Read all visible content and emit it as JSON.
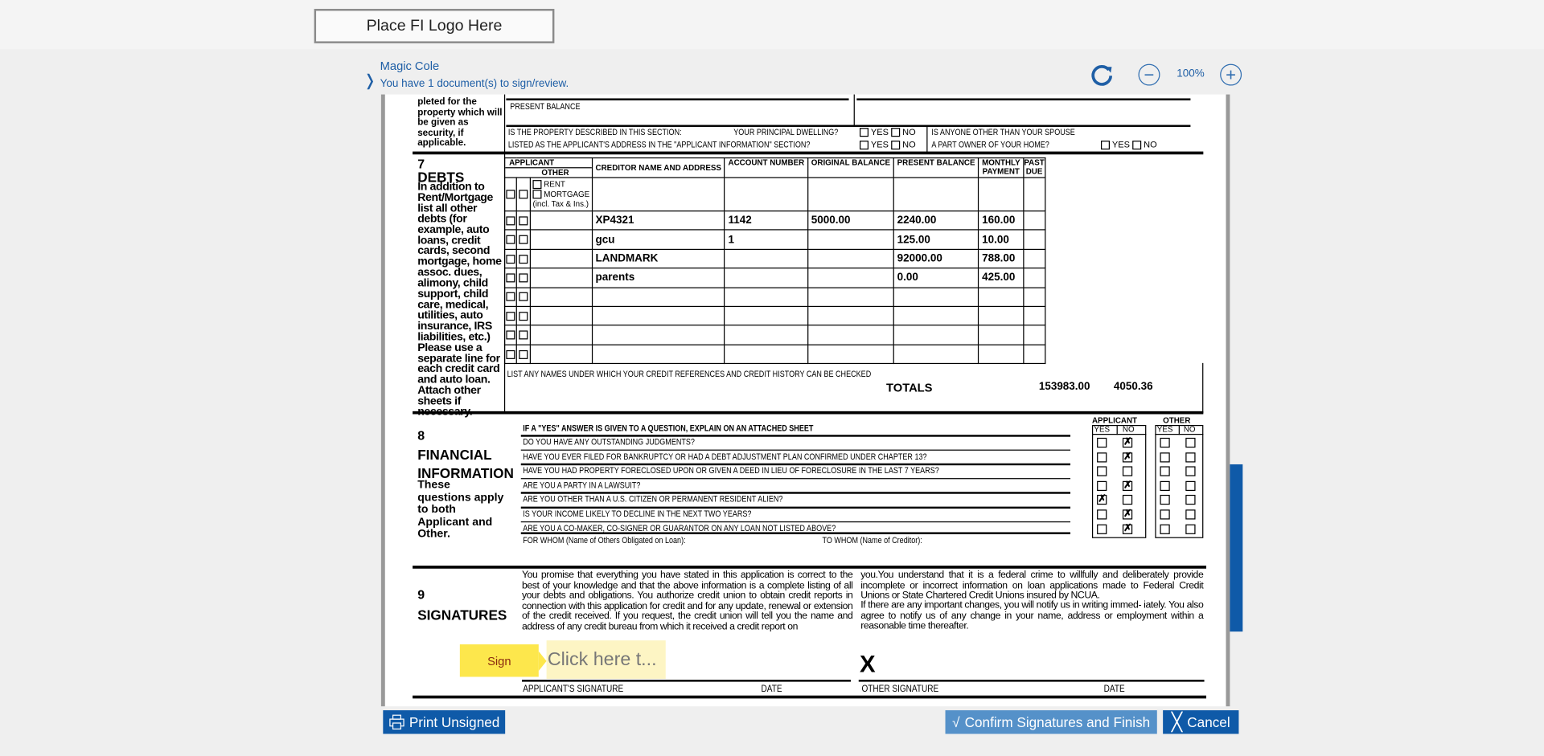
{
  "header": {
    "logo_text": "Place FI Logo Here"
  },
  "signer": {
    "name": "Magic Cole",
    "documents_message": "You have 1 document(s) to sign/review."
  },
  "toolbar": {
    "zoom_level": "100%",
    "icons": [
      "refresh-icon",
      "zoom-out-icon",
      "zoom-in-icon"
    ]
  },
  "colors": {
    "accent": "#0f5aa8",
    "sign_tag": "#fde74c",
    "sign_field": "#fdf5c4",
    "confirm_button": "#5591c9"
  },
  "form": {
    "prev_section": {
      "left_text": "pleted for the property which will be given as security, if applicable.",
      "present_balance_label": "PRESENT BALANCE",
      "q1": "IS THE PROPERTY DESCRIBED IN THIS SECTION:",
      "q1b": "YOUR PRINCIPAL DWELLING?",
      "q2": "LISTED AS THE APPLICANT'S ADDRESS IN THE \"APPLICANT INFORMATION\" SECTION?",
      "q3": "IS ANYONE OTHER THAN YOUR SPOUSE",
      "q4": "A PART OWNER OF YOUR HOME?",
      "yes": "YES",
      "no": "NO"
    },
    "debts": {
      "number": "7",
      "title": "DEBTS",
      "description": "In addition to Rent/Mortgage list all other debts (for example, auto loans, credit cards, second mortgage, home assoc. dues, alimony, child support, child care, medical, utilities, auto insurance, IRS liabilities, etc.) Please use a separate line for each credit card and auto loan. Attach other sheets if necessary.",
      "columns": {
        "applicant": "APPLICANT",
        "other": "OTHER",
        "creditor": "CREDITOR NAME AND ADDRESS",
        "account": "ACCOUNT  NUMBER",
        "original": "ORIGINAL BALANCE",
        "present": "PRESENT BALANCE",
        "monthly": "MONTHLY PAYMENT",
        "past_due": "PAST DUE"
      },
      "rent_label": "RENT",
      "mortgage_label": "MORTGAGE",
      "mortgage_note": "(incl. Tax & Ins.)",
      "rows": [
        {
          "creditor": "XP4321",
          "account": "1142",
          "original": "5000.00",
          "present": "2240.00",
          "monthly": "160.00",
          "past_due": ""
        },
        {
          "creditor": "gcu",
          "account": "1",
          "original": "",
          "present": "125.00",
          "monthly": "10.00",
          "past_due": ""
        },
        {
          "creditor": "LANDMARK",
          "account": "",
          "original": "",
          "present": "92000.00",
          "monthly": "788.00",
          "past_due": ""
        },
        {
          "creditor": "parents",
          "account": "",
          "original": "",
          "present": "0.00",
          "monthly": "425.00",
          "past_due": ""
        },
        {
          "creditor": "",
          "account": "",
          "original": "",
          "present": "",
          "monthly": "",
          "past_due": ""
        },
        {
          "creditor": "",
          "account": "",
          "original": "",
          "present": "",
          "monthly": "",
          "past_due": ""
        },
        {
          "creditor": "",
          "account": "",
          "original": "",
          "present": "",
          "monthly": "",
          "past_due": ""
        },
        {
          "creditor": "",
          "account": "",
          "original": "",
          "present": "",
          "monthly": "",
          "past_due": ""
        }
      ],
      "names_label": "LIST ANY NAMES UNDER WHICH YOUR CREDIT REFERENCES AND CREDIT HISTORY CAN BE CHECKED",
      "totals_label": "TOTALS",
      "total_present": "153983.00",
      "total_monthly": "4050.36"
    },
    "financial": {
      "number": "8",
      "title1": "FINANCIAL",
      "title2": "INFORMATION",
      "description": "These questions apply to both Applicant and Other.",
      "instruction": "IF A \"YES\" ANSWER IS GIVEN TO A QUESTION, EXPLAIN ON AN ATTACHED SHEET",
      "applicant_label": "APPLICANT",
      "other_label": "OTHER",
      "yes": "YES",
      "no": "NO",
      "questions": [
        {
          "text": "DO YOU HAVE ANY OUTSTANDING JUDGMENTS?",
          "applicant": "no"
        },
        {
          "text": "HAVE YOU EVER FILED FOR BANKRUPTCY OR HAD A DEBT ADJUSTMENT PLAN CONFIRMED UNDER CHAPTER 13?",
          "applicant": "no"
        },
        {
          "text": "HAVE YOU HAD PROPERTY FORECLOSED UPON OR GIVEN A DEED IN LIEU OF FORECLOSURE IN THE LAST 7 YEARS?",
          "applicant": ""
        },
        {
          "text": "ARE YOU A PARTY IN A LAWSUIT?",
          "applicant": "no"
        },
        {
          "text": "ARE YOU OTHER THAN A U.S. CITIZEN OR PERMANENT RESIDENT ALIEN?",
          "applicant": "yes"
        },
        {
          "text": "IS YOUR INCOME LIKELY TO DECLINE IN THE NEXT TWO YEARS?",
          "applicant": "no"
        },
        {
          "text": "ARE YOU A CO-MAKER, CO-SIGNER OR GUARANTOR ON ANY LOAN NOT LISTED ABOVE?",
          "applicant": "no"
        }
      ],
      "for_whom": "FOR WHOM (Name of Others Obligated on Loan):",
      "to_whom": "TO WHOM (Name of Creditor):"
    },
    "signatures": {
      "number": "9",
      "title": "SIGNATURES",
      "text_left": "You promise that everything you have stated in this application is      correct to the best of your knowledge and that the above information is a complete listing of all your debts and obligations. You authorize credit union to obtain credit reports in connection with this application for credit and for any update, renewal or extension of the credit   received.  If you request, the credit union will tell you the name and address of any credit bureau from which it received a credit report on",
      "text_right1": "you.You understand that it is a federal crime to willfully and deliberately  provide incomplete or incorrect information on loan applications made to Federal Credit Unions or State Chartered Credit Unions insured by NCUA.",
      "text_right2": "If there are any important changes, you will notify us in writing immed- iately. You also agree to notify us of any change in your name, address or employment within a reasonable time thereafter.",
      "sign_tag": "Sign",
      "sign_field_placeholder": "Click here t...",
      "other_mark": "X",
      "applicant_sig_label": "APPLICANT'S SIGNATURE",
      "date_label": "DATE",
      "other_sig_label": "OTHER SIGNATURE"
    }
  },
  "footer": {
    "print_label": "Print Unsigned",
    "confirm_label": "Confirm Signatures and Finish",
    "cancel_label": "Cancel"
  }
}
